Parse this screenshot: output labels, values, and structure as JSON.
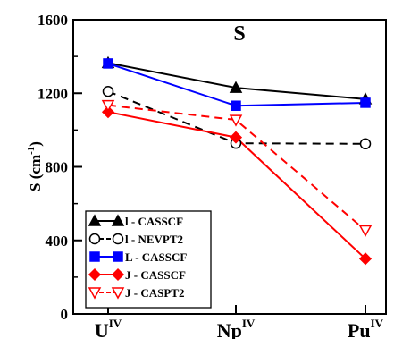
{
  "chart_data": {
    "type": "line",
    "title": "S",
    "ylabel": "S (cm",
    "ylabel_sup": "-1",
    "ylabel_close": ")",
    "ylim": [
      0,
      1600
    ],
    "yticks": [
      "0",
      "400",
      "800",
      "1200",
      "1600"
    ],
    "yticks_values": [
      0,
      400,
      800,
      1200,
      1600
    ],
    "categories": [
      {
        "base": "U",
        "sup": "IV"
      },
      {
        "base": "Np",
        "sup": "IV"
      },
      {
        "base": "Pu",
        "sup": "IV"
      }
    ],
    "legend_position": "bottom-left",
    "grid": false,
    "series": [
      {
        "name": "l - CASSCF",
        "values": [
          1365,
          1230,
          1168
        ],
        "color": "#000000",
        "marker": "triangle",
        "filled": true,
        "dashed": false
      },
      {
        "name": "l - NEVPT2",
        "values": [
          1210,
          928,
          925
        ],
        "color": "#000000",
        "marker": "circle",
        "filled": false,
        "dashed": true
      },
      {
        "name": "L - CASSCF",
        "values": [
          1362,
          1132,
          1148
        ],
        "color": "#0000ff",
        "marker": "square",
        "filled": true,
        "dashed": false
      },
      {
        "name": "J - CASSCF",
        "values": [
          1098,
          960,
          300
        ],
        "color": "#ff0000",
        "marker": "diamond",
        "filled": true,
        "dashed": false
      },
      {
        "name": "J - CASPT2",
        "values": [
          1135,
          1055,
          455
        ],
        "color": "#ff0000",
        "marker": "triangle-down",
        "filled": false,
        "dashed": true
      }
    ]
  }
}
